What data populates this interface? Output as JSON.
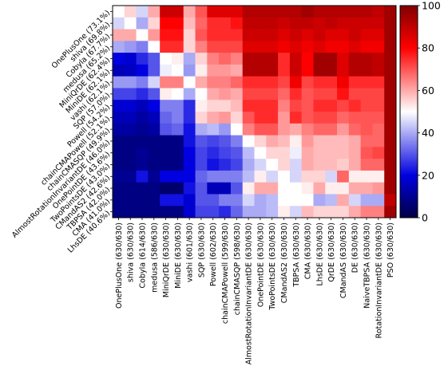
{
  "chart_data": {
    "type": "heatmap",
    "title": "",
    "xlabel": "",
    "ylabel": "",
    "row_labels": [
      "OnePlusOne (73.1%)",
      "shiva (69.8%)",
      "Cobyla (67.7%)",
      "medusa (65.2%)",
      "MiniQrDE (62.4%)",
      "MiniDE (62.1%)",
      "vashi (62.1%)",
      "SQP (57.0%)",
      "Powell (54.2%)",
      "chainCMAPowell (52.1%)",
      "chainCMASQP (49.9%)",
      "AlmostRotationInvariantDE (46.0%)",
      "OnePointDE (43.6%)",
      "TwoPointsDE (43.0%)",
      "CMandAS2 (42.6%)",
      "TBPSA (42.0%)",
      "CMA (41.0%)",
      "LhsDE (40.6%)"
    ],
    "col_labels": [
      "OnePlusOne (630/630)",
      "shiva (630/630)",
      "Cobyla (614/630)",
      "medusa (586/630)",
      "MiniQrDE (630/630)",
      "MiniDE (630/630)",
      "vashi (601/630)",
      "SQP (630/630)",
      "Powell (602/630)",
      "chainCMAPowell (599/630)",
      "chainCMASQP (598/630)",
      "AlmostRotationInvariantDE (630/630)",
      "OnePointDE (630/630)",
      "TwoPointsDE (630/630)",
      "CMandAS2 (630/630)",
      "TBPSA (630/630)",
      "CMA (630/630)",
      "LhsDE (630/630)",
      "QrDE (630/630)",
      "CMandAS (630/630)",
      "DE (630/630)",
      "NaiveTBPSA (630/630)",
      "RotationInvariantDE (630/630)",
      "PSO (630/630)"
    ],
    "values": [
      [
        50,
        55,
        45,
        60,
        88,
        88,
        60,
        70,
        85,
        85,
        85,
        92,
        92,
        92,
        92,
        92,
        95,
        92,
        92,
        92,
        92,
        92,
        90,
        95
      ],
      [
        45,
        50,
        40,
        55,
        80,
        80,
        58,
        68,
        75,
        75,
        78,
        90,
        90,
        90,
        88,
        90,
        90,
        88,
        90,
        88,
        88,
        88,
        88,
        95
      ],
      [
        60,
        60,
        50,
        62,
        78,
        78,
        55,
        70,
        75,
        75,
        75,
        88,
        88,
        88,
        85,
        88,
        85,
        88,
        85,
        85,
        88,
        85,
        85,
        95
      ],
      [
        40,
        38,
        35,
        50,
        75,
        75,
        55,
        65,
        72,
        72,
        72,
        85,
        85,
        85,
        82,
        85,
        82,
        85,
        82,
        82,
        85,
        82,
        82,
        95
      ],
      [
        20,
        18,
        25,
        30,
        50,
        52,
        40,
        55,
        65,
        68,
        65,
        92,
        92,
        92,
        75,
        88,
        80,
        95,
        95,
        85,
        92,
        92,
        90,
        95
      ],
      [
        15,
        16,
        20,
        30,
        48,
        50,
        38,
        52,
        62,
        62,
        60,
        92,
        92,
        92,
        75,
        88,
        80,
        95,
        95,
        85,
        92,
        92,
        90,
        95
      ],
      [
        38,
        38,
        35,
        45,
        65,
        65,
        50,
        60,
        65,
        65,
        68,
        75,
        75,
        75,
        72,
        82,
        72,
        75,
        75,
        82,
        75,
        75,
        75,
        95
      ],
      [
        28,
        28,
        25,
        30,
        52,
        50,
        40,
        50,
        60,
        62,
        60,
        72,
        72,
        72,
        68,
        75,
        70,
        72,
        72,
        78,
        72,
        72,
        72,
        95
      ],
      [
        18,
        18,
        15,
        20,
        35,
        35,
        25,
        52,
        55,
        55,
        58,
        75,
        75,
        75,
        65,
        72,
        70,
        75,
        75,
        72,
        75,
        72,
        72,
        95
      ],
      [
        15,
        15,
        12,
        15,
        32,
        35,
        25,
        55,
        60,
        62,
        55,
        70,
        75,
        75,
        62,
        75,
        70,
        72,
        72,
        68,
        70,
        70,
        70,
        95
      ],
      [
        12,
        12,
        10,
        12,
        30,
        32,
        22,
        40,
        42,
        38,
        50,
        65,
        70,
        70,
        62,
        60,
        65,
        68,
        68,
        62,
        68,
        70,
        68,
        95
      ],
      [
        8,
        8,
        8,
        8,
        8,
        8,
        22,
        30,
        28,
        30,
        35,
        50,
        55,
        60,
        58,
        52,
        62,
        58,
        58,
        58,
        60,
        68,
        68,
        95
      ],
      [
        8,
        8,
        10,
        8,
        8,
        8,
        20,
        28,
        25,
        28,
        30,
        42,
        50,
        55,
        55,
        48,
        60,
        58,
        58,
        58,
        60,
        70,
        72,
        95
      ],
      [
        8,
        8,
        10,
        8,
        8,
        8,
        20,
        28,
        22,
        25,
        28,
        40,
        45,
        50,
        55,
        45,
        60,
        58,
        58,
        56,
        60,
        68,
        68,
        95
      ],
      [
        10,
        10,
        22,
        10,
        20,
        20,
        20,
        32,
        35,
        35,
        35,
        42,
        52,
        45,
        50,
        45,
        55,
        55,
        45,
        68,
        52,
        52,
        52,
        95
      ],
      [
        8,
        8,
        8,
        8,
        5,
        5,
        22,
        30,
        15,
        15,
        30,
        52,
        60,
        60,
        50,
        50,
        52,
        60,
        52,
        52,
        60,
        60,
        62,
        95
      ],
      [
        8,
        8,
        8,
        8,
        22,
        22,
        18,
        30,
        30,
        35,
        35,
        45,
        40,
        42,
        50,
        50,
        50,
        40,
        42,
        60,
        45,
        40,
        40,
        90
      ],
      [
        8,
        8,
        8,
        8,
        8,
        8,
        18,
        28,
        28,
        25,
        32,
        40,
        40,
        42,
        52,
        45,
        58,
        55,
        55,
        55,
        60,
        65,
        65,
        95
      ]
    ],
    "colorscale": "seismic",
    "colorbar": {
      "min": 0,
      "max": 100,
      "ticks": [
        0,
        20,
        40,
        60,
        80,
        100
      ]
    },
    "grid": false,
    "legend": "colorbar-right"
  }
}
